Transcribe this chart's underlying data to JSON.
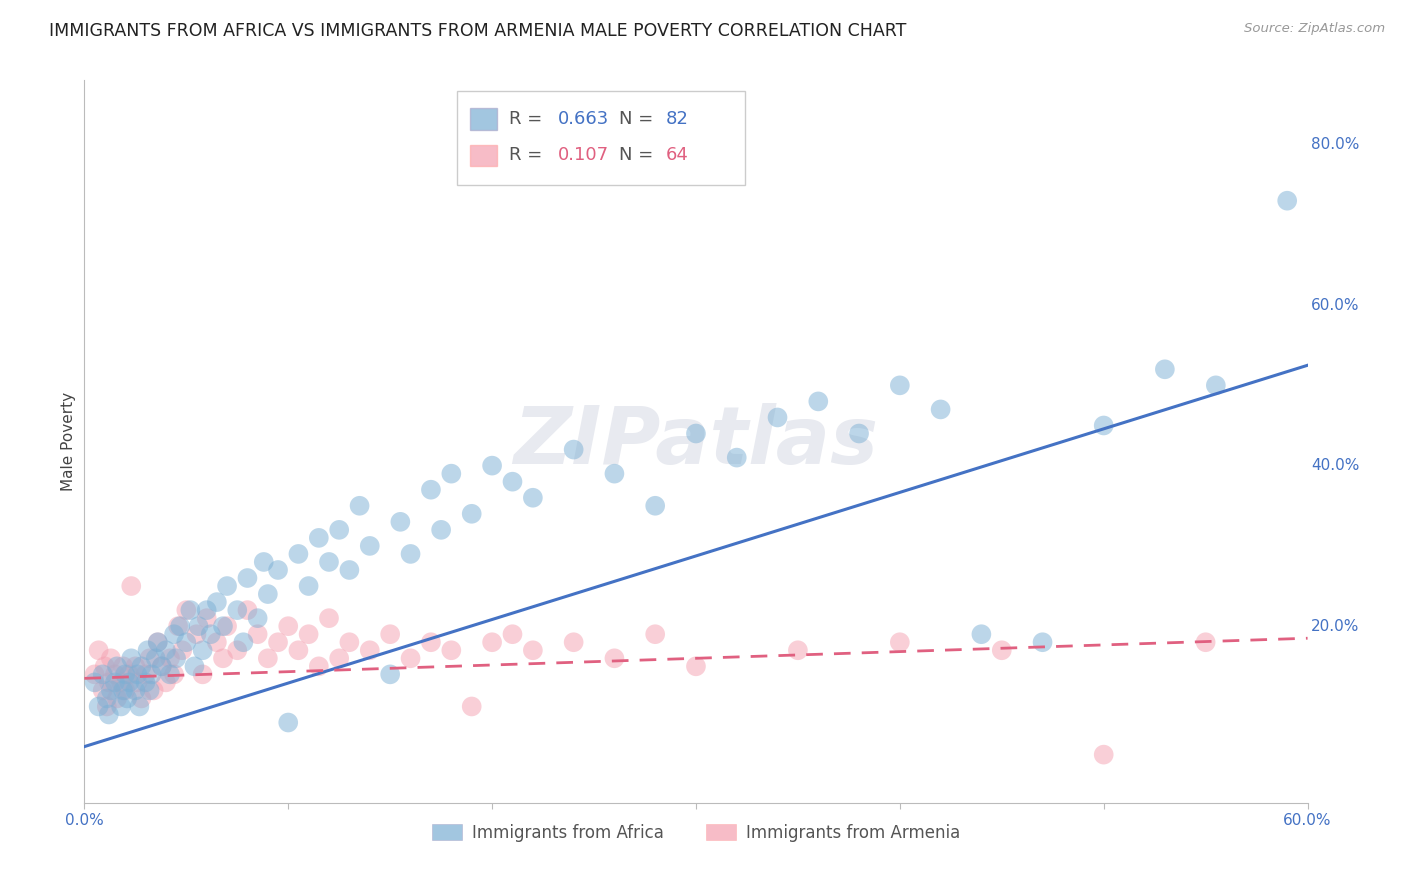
{
  "title": "IMMIGRANTS FROM AFRICA VS IMMIGRANTS FROM ARMENIA MALE POVERTY CORRELATION CHART",
  "source": "Source: ZipAtlas.com",
  "ylabel": "Male Poverty",
  "xlim": [
    0.0,
    0.6
  ],
  "ylim": [
    -0.02,
    0.88
  ],
  "africa_R": 0.663,
  "africa_N": 82,
  "armenia_R": 0.107,
  "armenia_N": 64,
  "africa_color": "#7BAFD4",
  "armenia_color": "#F4A0B0",
  "africa_line_color": "#4472C4",
  "armenia_line_color": "#E06080",
  "watermark": "ZIPatlas",
  "background_color": "#FFFFFF",
  "grid_color": "#D0D0E0",
  "title_fontsize": 12.5,
  "axis_label_fontsize": 11,
  "tick_fontsize": 11,
  "africa_trend_x": [
    0.0,
    0.6
  ],
  "africa_trend_y": [
    0.05,
    0.525
  ],
  "armenia_trend_x": [
    0.0,
    0.6
  ],
  "armenia_trend_y": [
    0.135,
    0.185
  ],
  "africa_x": [
    0.005,
    0.007,
    0.009,
    0.011,
    0.012,
    0.013,
    0.015,
    0.016,
    0.018,
    0.019,
    0.02,
    0.021,
    0.022,
    0.023,
    0.025,
    0.026,
    0.027,
    0.028,
    0.03,
    0.031,
    0.032,
    0.033,
    0.035,
    0.036,
    0.038,
    0.04,
    0.042,
    0.044,
    0.045,
    0.047,
    0.05,
    0.052,
    0.054,
    0.056,
    0.058,
    0.06,
    0.062,
    0.065,
    0.068,
    0.07,
    0.075,
    0.078,
    0.08,
    0.085,
    0.088,
    0.09,
    0.095,
    0.1,
    0.105,
    0.11,
    0.115,
    0.12,
    0.125,
    0.13,
    0.135,
    0.14,
    0.15,
    0.155,
    0.16,
    0.17,
    0.175,
    0.18,
    0.19,
    0.2,
    0.21,
    0.22,
    0.24,
    0.26,
    0.28,
    0.3,
    0.32,
    0.34,
    0.36,
    0.38,
    0.4,
    0.42,
    0.44,
    0.47,
    0.5,
    0.53,
    0.555,
    0.59
  ],
  "africa_y": [
    0.13,
    0.1,
    0.14,
    0.11,
    0.09,
    0.12,
    0.13,
    0.15,
    0.1,
    0.12,
    0.14,
    0.11,
    0.13,
    0.16,
    0.12,
    0.14,
    0.1,
    0.15,
    0.13,
    0.17,
    0.12,
    0.14,
    0.16,
    0.18,
    0.15,
    0.17,
    0.14,
    0.19,
    0.16,
    0.2,
    0.18,
    0.22,
    0.15,
    0.2,
    0.17,
    0.22,
    0.19,
    0.23,
    0.2,
    0.25,
    0.22,
    0.18,
    0.26,
    0.21,
    0.28,
    0.24,
    0.27,
    0.08,
    0.29,
    0.25,
    0.31,
    0.28,
    0.32,
    0.27,
    0.35,
    0.3,
    0.14,
    0.33,
    0.29,
    0.37,
    0.32,
    0.39,
    0.34,
    0.4,
    0.38,
    0.36,
    0.42,
    0.39,
    0.35,
    0.44,
    0.41,
    0.46,
    0.48,
    0.44,
    0.5,
    0.47,
    0.19,
    0.18,
    0.45,
    0.52,
    0.5,
    0.73
  ],
  "armenia_x": [
    0.005,
    0.007,
    0.009,
    0.01,
    0.011,
    0.012,
    0.013,
    0.015,
    0.016,
    0.018,
    0.019,
    0.02,
    0.022,
    0.023,
    0.025,
    0.026,
    0.028,
    0.03,
    0.032,
    0.034,
    0.036,
    0.038,
    0.04,
    0.042,
    0.044,
    0.046,
    0.048,
    0.05,
    0.055,
    0.058,
    0.06,
    0.065,
    0.068,
    0.07,
    0.075,
    0.08,
    0.085,
    0.09,
    0.095,
    0.1,
    0.105,
    0.11,
    0.115,
    0.12,
    0.125,
    0.13,
    0.14,
    0.15,
    0.16,
    0.17,
    0.18,
    0.19,
    0.2,
    0.21,
    0.22,
    0.24,
    0.26,
    0.28,
    0.3,
    0.35,
    0.4,
    0.45,
    0.5,
    0.55
  ],
  "armenia_y": [
    0.14,
    0.17,
    0.12,
    0.15,
    0.1,
    0.13,
    0.16,
    0.14,
    0.11,
    0.13,
    0.15,
    0.12,
    0.14,
    0.25,
    0.15,
    0.13,
    0.11,
    0.14,
    0.16,
    0.12,
    0.18,
    0.15,
    0.13,
    0.16,
    0.14,
    0.2,
    0.17,
    0.22,
    0.19,
    0.14,
    0.21,
    0.18,
    0.16,
    0.2,
    0.17,
    0.22,
    0.19,
    0.16,
    0.18,
    0.2,
    0.17,
    0.19,
    0.15,
    0.21,
    0.16,
    0.18,
    0.17,
    0.19,
    0.16,
    0.18,
    0.17,
    0.1,
    0.18,
    0.19,
    0.17,
    0.18,
    0.16,
    0.19,
    0.15,
    0.17,
    0.18,
    0.17,
    0.04,
    0.18
  ]
}
